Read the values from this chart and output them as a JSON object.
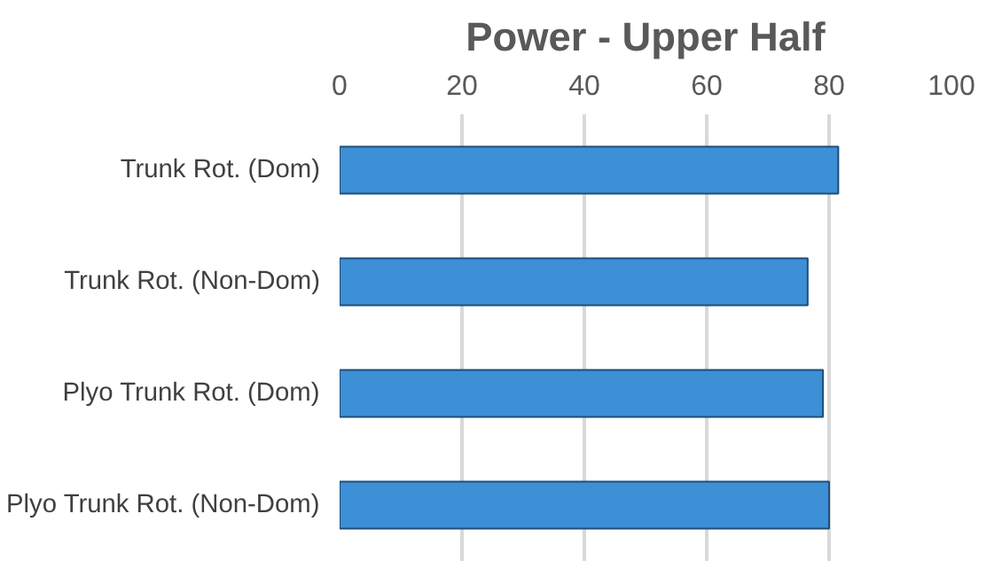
{
  "chart_data": {
    "type": "bar",
    "orientation": "horizontal",
    "title": "Power - Upper Half",
    "categories": [
      "Trunk Rot. (Dom)",
      "Trunk Rot. (Non-Dom)",
      "Plyo Trunk Rot. (Dom)",
      "Plyo Trunk Rot. (Non-Dom)"
    ],
    "values": [
      81.5,
      76.5,
      79,
      80
    ],
    "color": "#3d8fd6",
    "xlim": [
      0,
      100
    ],
    "xticks": [
      0,
      20,
      40,
      60,
      80,
      100
    ],
    "grid": "x"
  }
}
